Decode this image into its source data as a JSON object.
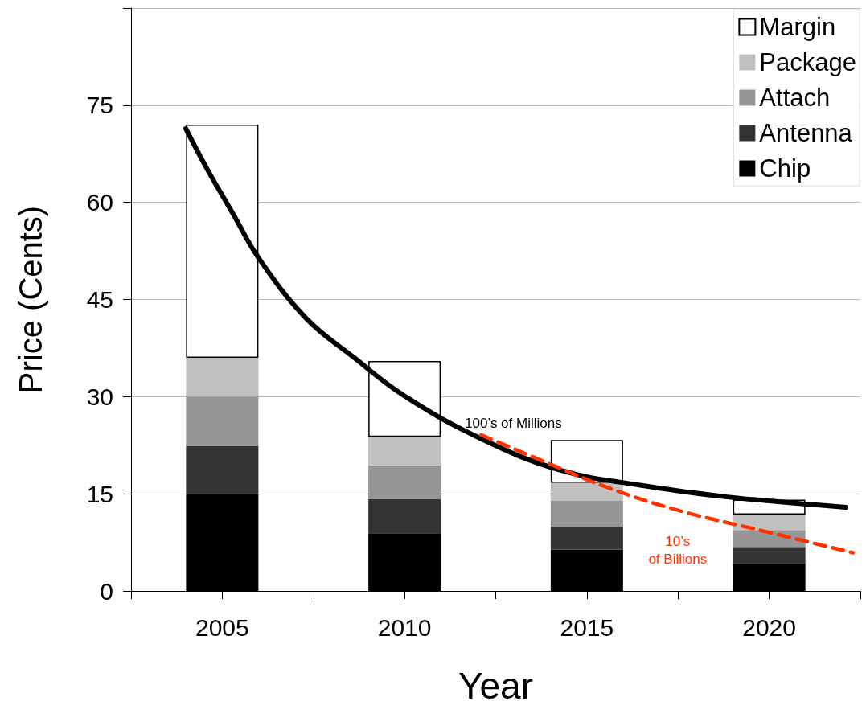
{
  "chart_data": {
    "type": "bar",
    "stacked": true,
    "xlabel": "Year",
    "ylabel": "Price (Cents)",
    "x": [
      2005,
      2010,
      2015,
      2020
    ],
    "xlim": [
      2002.5,
      2022.5
    ],
    "xticks": [
      {
        "value": 2002.5,
        "label": null
      },
      2005,
      {
        "value": 2007.5,
        "label": null
      },
      2010,
      {
        "value": 2012.5,
        "label": null
      },
      2015,
      {
        "value": 2017.5,
        "label": null
      },
      2020,
      {
        "value": 2022.5,
        "label": null
      }
    ],
    "ylim": [
      0,
      90
    ],
    "yticks": [
      0,
      15,
      30,
      45,
      60,
      75,
      {
        "value": 90,
        "label": null
      }
    ],
    "grid": "y",
    "legend": "top right",
    "series": [
      {
        "name": "Chip",
        "color": "#000000",
        "values": [
          15.0,
          8.9,
          6.4,
          4.3
        ]
      },
      {
        "name": "Antenna",
        "color": "#333333",
        "values": [
          7.4,
          5.3,
          3.6,
          2.5
        ]
      },
      {
        "name": "Attach",
        "color": "#969696",
        "values": [
          7.6,
          5.2,
          3.9,
          2.6
        ]
      },
      {
        "name": "Package",
        "color": "#c0c0c0",
        "values": [
          6.0,
          4.4,
          2.8,
          2.4
        ]
      },
      {
        "name": "Margin",
        "color": "#ffffff",
        "values": [
          36.0,
          11.7,
          6.6,
          2.3
        ]
      },
      {
        "name": "100’s of Millions",
        "type": "line",
        "line_style": "solid",
        "color": "#000000",
        "x": [
          2004.0,
          2004.6,
          2005.3,
          2006.0,
          2007.3,
          2008.6,
          2010.0,
          2012.1,
          2014.3,
          2016.5,
          2018.7,
          2020.0,
          2022.1
        ],
        "values": [
          71.4,
          65.0,
          58.2,
          51.4,
          42.1,
          36.1,
          30.1,
          23.5,
          18.6,
          16.3,
          14.6,
          13.9,
          12.9
        ]
      },
      {
        "name": "10’s of Billions",
        "type": "line",
        "line_style": "dashed",
        "color": "#ff3300",
        "x": [
          2012.1,
          2013.9,
          2015.6,
          2017.6,
          2019.8,
          2022.3
        ],
        "values": [
          24.1,
          19.8,
          15.9,
          12.3,
          9.3,
          5.9
        ]
      }
    ]
  }
}
